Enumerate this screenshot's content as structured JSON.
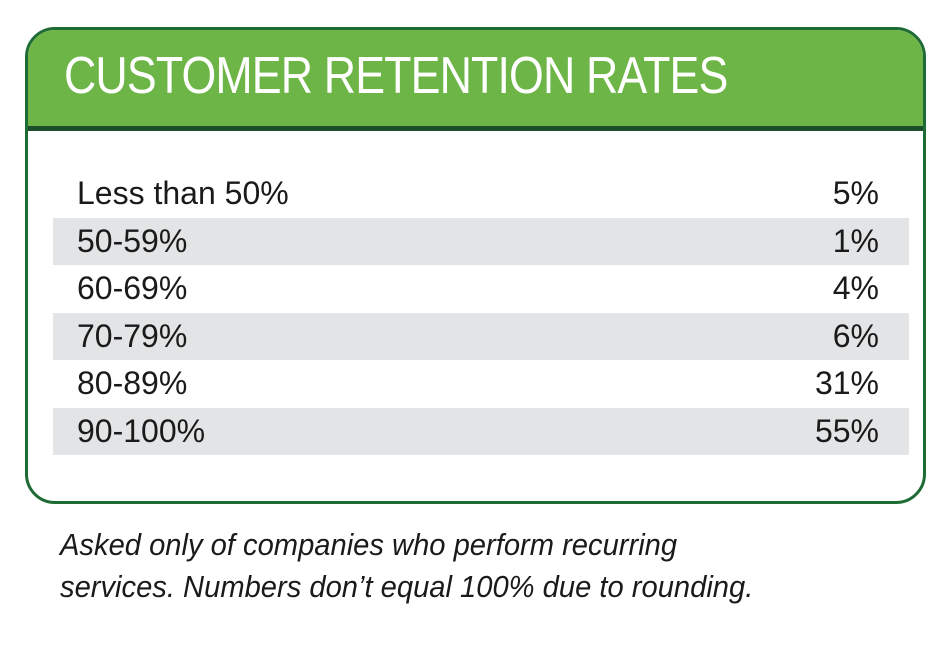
{
  "title": "CUSTOMER RETENTION RATES",
  "colors": {
    "header_green": "#6cb546",
    "border_green": "#1e6b35",
    "stripe_gray": "#e3e4e5"
  },
  "footnote": {
    "line1": "Asked only of companies who perform recurring",
    "line2": "services. Numbers don’t equal 100% due to rounding."
  },
  "chart_data": {
    "type": "table",
    "title": "CUSTOMER RETENTION RATES",
    "columns": [
      "",
      ""
    ],
    "rows": [
      {
        "label": "Less than 50%",
        "value": "5%"
      },
      {
        "label": "50-59%",
        "value": "1%"
      },
      {
        "label": "60-69%",
        "value": "4%"
      },
      {
        "label": "70-79%",
        "value": "6%"
      },
      {
        "label": "80-89%",
        "value": "31%"
      },
      {
        "label": "90-100%",
        "value": "55%"
      }
    ],
    "values": [
      5,
      1,
      4,
      6,
      31,
      55
    ]
  }
}
